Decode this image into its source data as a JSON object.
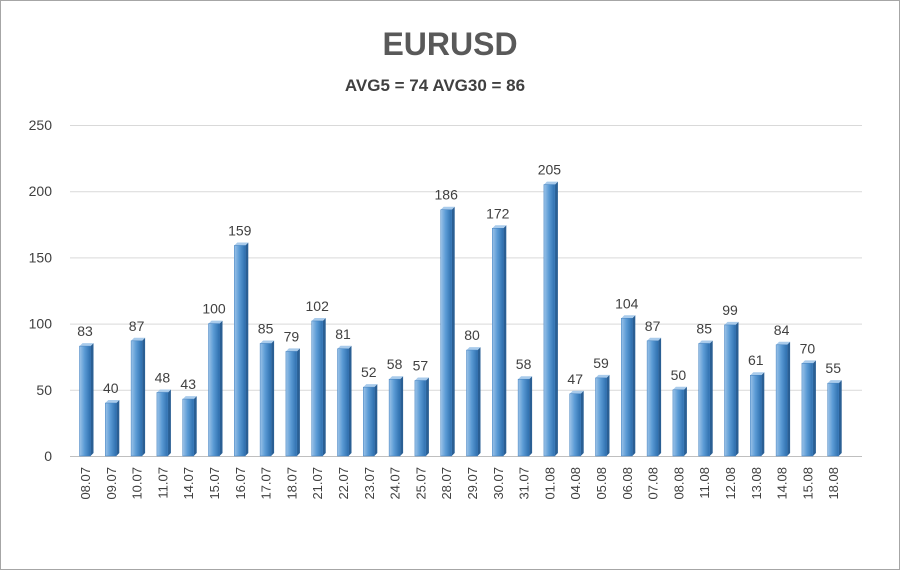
{
  "chart_data": {
    "type": "bar",
    "title": "EURUSD",
    "subtitle": "AVG5 = 74 AVG30 = 86",
    "xlabel": "",
    "ylabel": "",
    "ylim": [
      0,
      250
    ],
    "yticks": [
      "0",
      "50",
      "100",
      "150",
      "200",
      "250"
    ],
    "grid": true,
    "legend": "none",
    "bar_color": "#5b9bd5",
    "categories": [
      "08.07",
      "09.07",
      "10.07",
      "11.07",
      "14.07",
      "15.07",
      "16.07",
      "17.07",
      "18.07",
      "21.07",
      "22.07",
      "23.07",
      "24.07",
      "25.07",
      "28.07",
      "29.07",
      "30.07",
      "31.07",
      "01.08",
      "04.08",
      "05.08",
      "06.08",
      "07.08",
      "08.08",
      "11.08",
      "12.08",
      "13.08",
      "14.08",
      "15.08",
      "18.08"
    ],
    "values": [
      83,
      40,
      87,
      48,
      43,
      100,
      159,
      85,
      79,
      102,
      81,
      52,
      58,
      57,
      186,
      80,
      172,
      58,
      205,
      47,
      59,
      104,
      87,
      50,
      85,
      99,
      61,
      84,
      70,
      55
    ]
  }
}
